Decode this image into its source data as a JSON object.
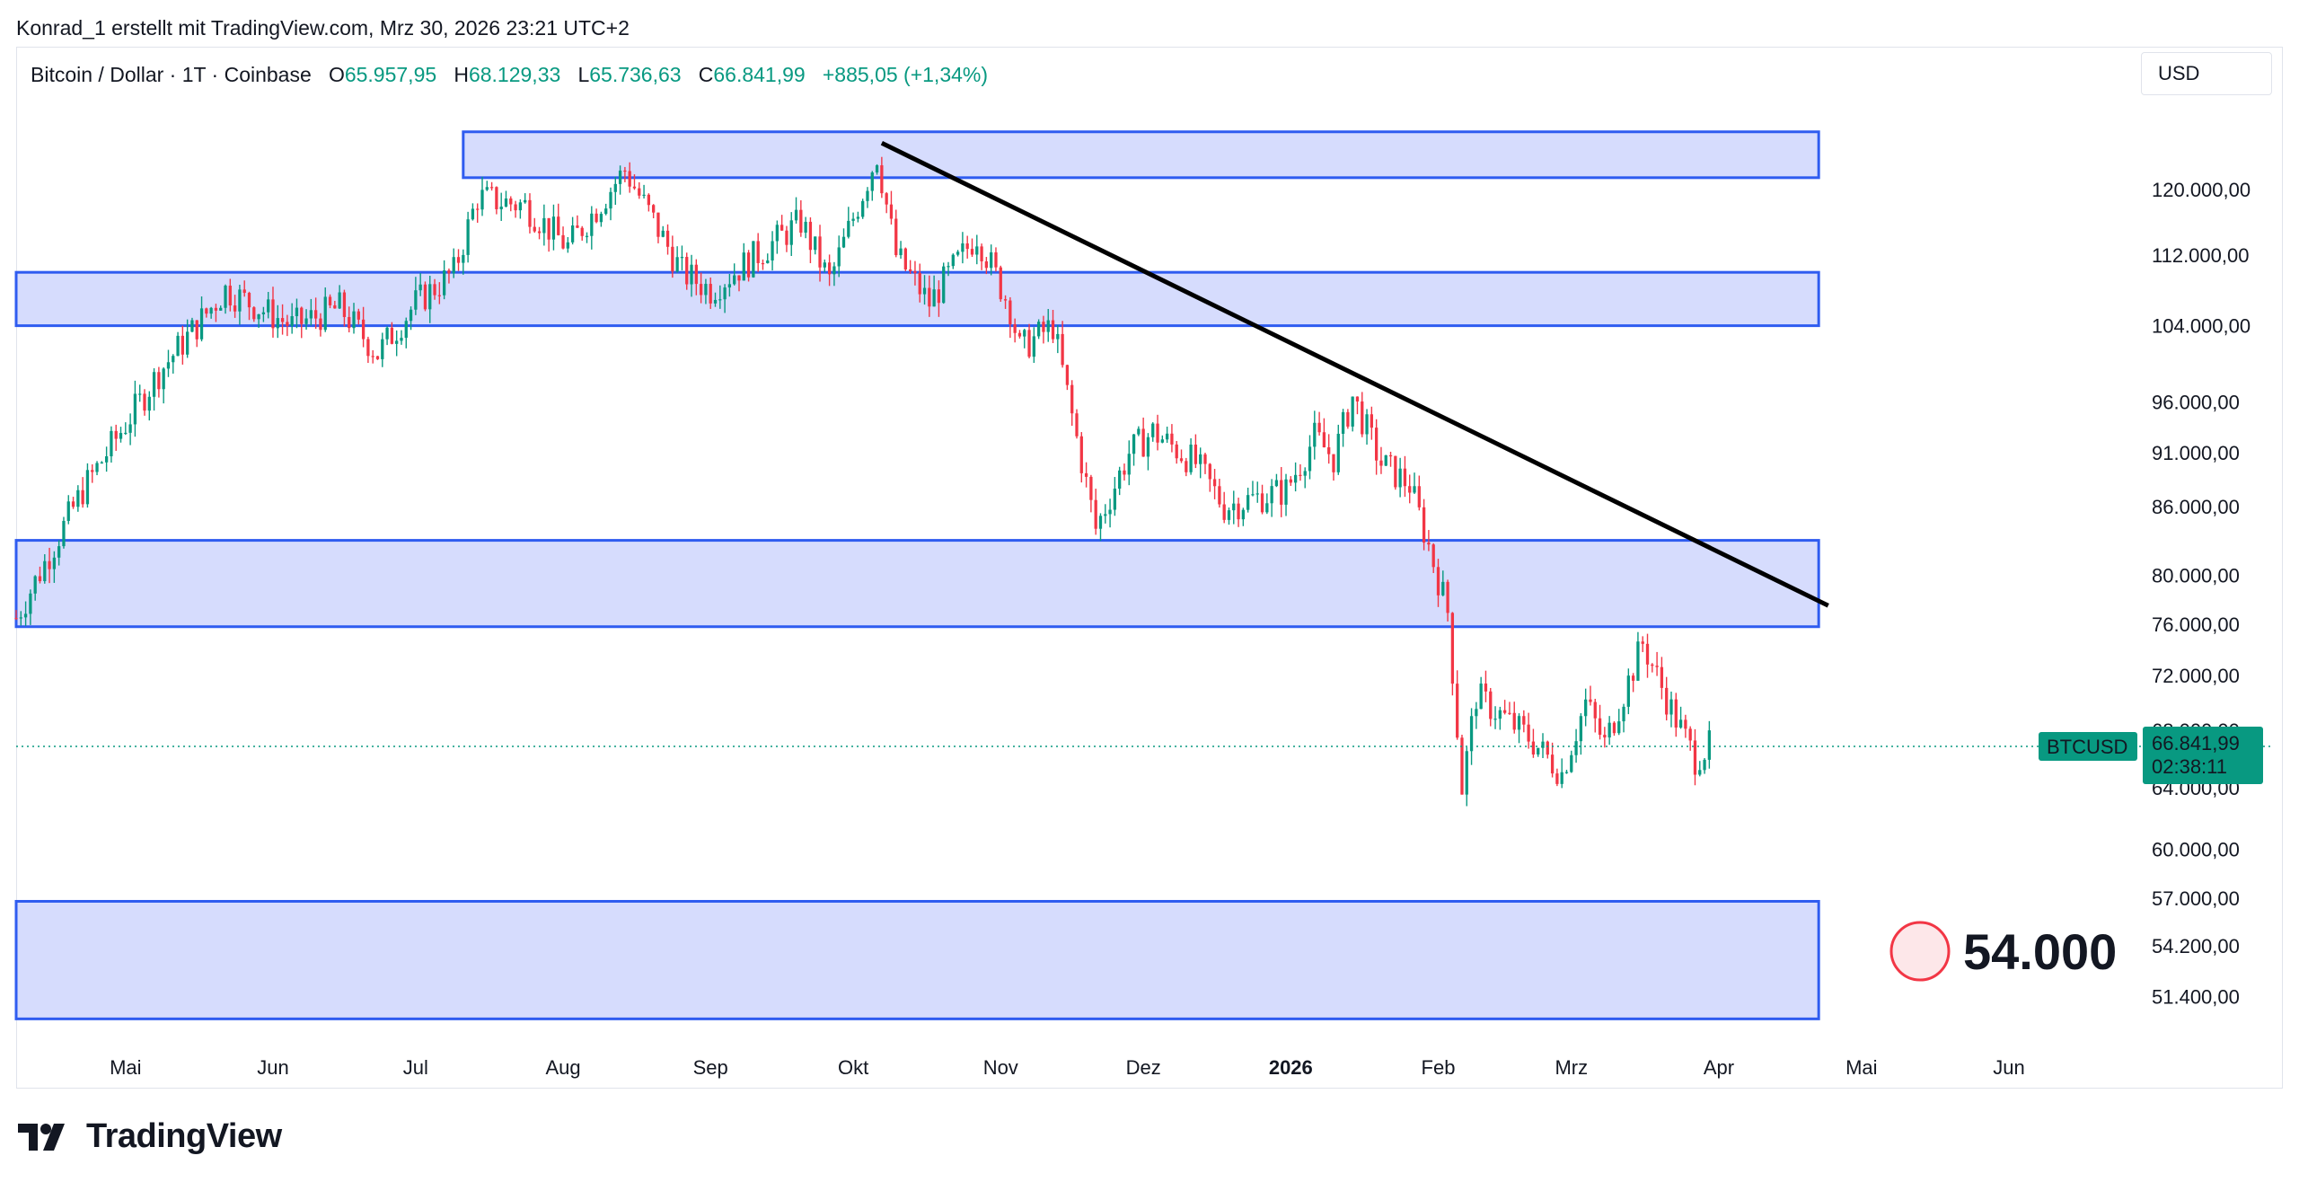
{
  "header": {
    "attribution": "Konrad_1 erstellt mit TradingView.com, Mrz 30, 2026 23:21 UTC+2"
  },
  "legend": {
    "symbol": "Bitcoin / Dollar · 1T · Coinbase",
    "o_label": "O",
    "o_value": "65.957,95",
    "h_label": "H",
    "h_value": "68.129,33",
    "l_label": "L",
    "l_value": "65.736,63",
    "c_label": "C",
    "c_value": "66.841,99",
    "change": "+885,05 (+1,34%)"
  },
  "currency": "USD",
  "price_tag": {
    "symbol": "BTCUSD",
    "price": "66.841,99",
    "countdown": "02:38:11"
  },
  "target_label": "54.000",
  "footer": {
    "brand": "TradingView"
  },
  "colors": {
    "up": "#089981",
    "down": "#f23645",
    "zone_fill": "#d6dcfd",
    "zone_border": "#2f5cf0",
    "trendline": "#000000",
    "price_line": "#089981"
  },
  "chart_data": {
    "type": "candlestick",
    "title": "Bitcoin / Dollar · 1T · Coinbase",
    "y_scale": "log",
    "ylim": [
      49000,
      132000
    ],
    "x_range": [
      "2025-04-08",
      "2026-06-28"
    ],
    "x_ticks": [
      {
        "label": "Mai",
        "date": "2025-05-01",
        "bold": false
      },
      {
        "label": "Jun",
        "date": "2025-06-01",
        "bold": false
      },
      {
        "label": "Jul",
        "date": "2025-07-01",
        "bold": false
      },
      {
        "label": "Aug",
        "date": "2025-08-01",
        "bold": false
      },
      {
        "label": "Sep",
        "date": "2025-09-01",
        "bold": false
      },
      {
        "label": "Okt",
        "date": "2025-10-01",
        "bold": false
      },
      {
        "label": "Nov",
        "date": "2025-11-01",
        "bold": false
      },
      {
        "label": "Dez",
        "date": "2025-12-01",
        "bold": false
      },
      {
        "label": "2026",
        "date": "2026-01-01",
        "bold": true
      },
      {
        "label": "Feb",
        "date": "2026-02-01",
        "bold": false
      },
      {
        "label": "Mrz",
        "date": "2026-03-01",
        "bold": false
      },
      {
        "label": "Apr",
        "date": "2026-04-01",
        "bold": false
      },
      {
        "label": "Mai",
        "date": "2026-05-01",
        "bold": false
      },
      {
        "label": "Jun",
        "date": "2026-06-01",
        "bold": false
      }
    ],
    "y_ticks": [
      {
        "label": "120.000,00",
        "value": 120000
      },
      {
        "label": "112.000,00",
        "value": 112000
      },
      {
        "label": "104.000,00",
        "value": 104000
      },
      {
        "label": "96.000,00",
        "value": 96000
      },
      {
        "label": "91.000,00",
        "value": 91000
      },
      {
        "label": "86.000,00",
        "value": 86000
      },
      {
        "label": "80.000,00",
        "value": 80000
      },
      {
        "label": "76.000,00",
        "value": 76000
      },
      {
        "label": "72.000,00",
        "value": 72000
      },
      {
        "label": "68.000,00",
        "value": 68000
      },
      {
        "label": "64.000,00",
        "value": 64000
      },
      {
        "label": "60.000,00",
        "value": 60000
      },
      {
        "label": "57.000,00",
        "value": 57000
      },
      {
        "label": "54.200,00",
        "value": 54200
      },
      {
        "label": "51.400,00",
        "value": 51400
      }
    ],
    "zones": [
      {
        "x_start": "2025-07-11",
        "x_end": "2026-04-22",
        "y_low": 121500,
        "y_high": 127500
      },
      {
        "x_start": "2025-04-08",
        "x_end": "2026-04-22",
        "y_low": 104000,
        "y_high": 110000
      },
      {
        "x_start": "2025-04-08",
        "x_end": "2026-04-22",
        "y_low": 75800,
        "y_high": 83000
      },
      {
        "x_start": "2025-04-08",
        "x_end": "2026-04-22",
        "y_low": 50200,
        "y_high": 56800
      }
    ],
    "trendline": {
      "x1": "2025-10-07",
      "y1": 126000,
      "x2": "2026-04-24",
      "y2": 77500
    },
    "last_price": 66841.99,
    "target_marker": {
      "date": "2026-04-30",
      "value": 54000
    },
    "ohlc_anchors": [
      [
        "2025-04-08",
        76500
      ],
      [
        "2025-04-22",
        87500
      ],
      [
        "2025-05-08",
        99000
      ],
      [
        "2025-05-22",
        108000
      ],
      [
        "2025-06-05",
        104000
      ],
      [
        "2025-06-15",
        106000
      ],
      [
        "2025-06-23",
        101000
      ],
      [
        "2025-07-01",
        106500
      ],
      [
        "2025-07-09",
        110000
      ],
      [
        "2025-07-14",
        119000
      ],
      [
        "2025-07-24",
        118000
      ],
      [
        "2025-08-02",
        113000
      ],
      [
        "2025-08-14",
        122500
      ],
      [
        "2025-08-26",
        110000
      ],
      [
        "2025-09-01",
        108000
      ],
      [
        "2025-09-20",
        116000
      ],
      [
        "2025-09-26",
        109000
      ],
      [
        "2025-10-06",
        124500
      ],
      [
        "2025-10-10",
        112000
      ],
      [
        "2025-10-17",
        106500
      ],
      [
        "2025-10-27",
        114500
      ],
      [
        "2025-11-03",
        106000
      ],
      [
        "2025-11-05",
        101500
      ],
      [
        "2025-11-12",
        104000
      ],
      [
        "2025-11-21",
        84000
      ],
      [
        "2025-11-28",
        91000
      ],
      [
        "2025-12-03",
        93000
      ],
      [
        "2025-12-12",
        90000
      ],
      [
        "2025-12-18",
        86000
      ],
      [
        "2025-12-31",
        87500
      ],
      [
        "2026-01-06",
        92500
      ],
      [
        "2026-01-10",
        90500
      ],
      [
        "2026-01-14",
        96500
      ],
      [
        "2026-01-20",
        90000
      ],
      [
        "2026-01-26",
        88000
      ],
      [
        "2026-01-30",
        82500
      ],
      [
        "2026-02-03",
        77000
      ],
      [
        "2026-02-06",
        64000
      ],
      [
        "2026-02-09",
        70500
      ],
      [
        "2026-02-20",
        67500
      ],
      [
        "2026-02-27",
        65000
      ],
      [
        "2026-03-04",
        70000
      ],
      [
        "2026-03-08",
        67000
      ],
      [
        "2026-03-16",
        74500
      ],
      [
        "2026-03-22",
        69500
      ],
      [
        "2026-03-27",
        66000
      ],
      [
        "2026-03-30",
        66842
      ]
    ]
  }
}
